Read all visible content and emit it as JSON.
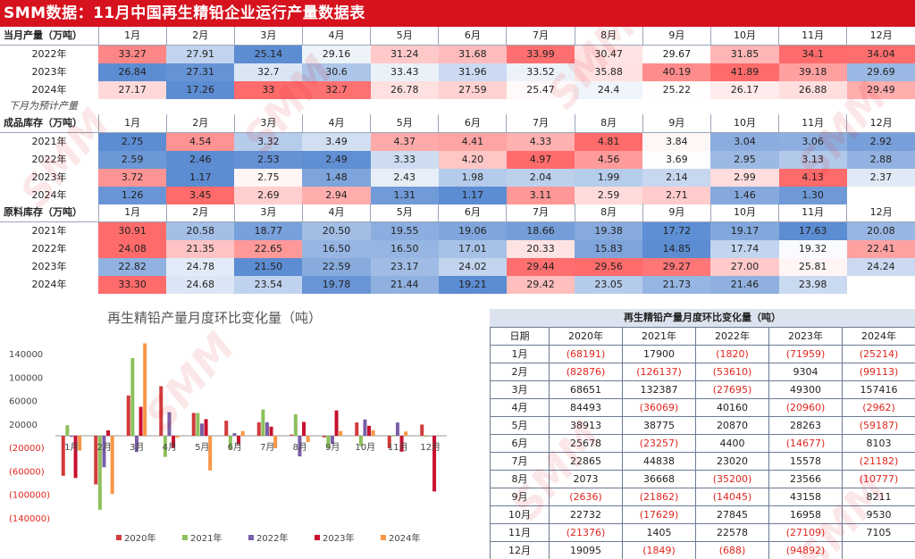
{
  "page_title": "SMM数据：11月中国再生精铅企业运行产量数据表",
  "months": [
    "1月",
    "2月",
    "3月",
    "4月",
    "5月",
    "6月",
    "7月",
    "8月",
    "9月",
    "10月",
    "11月",
    "12月"
  ],
  "note": "下月为预计产量",
  "watermark": "SMM",
  "sections": [
    {
      "title": "当月产量（万吨）",
      "rows": [
        {
          "year": "2022年",
          "values": [
            "33.27",
            "27.91",
            "25.14",
            "29.16",
            "31.24",
            "31.68",
            "33.99",
            "30.47",
            "29.67",
            "31.85",
            "34.1",
            "34.04"
          ]
        },
        {
          "year": "2023年",
          "values": [
            "26.84",
            "27.31",
            "32.7",
            "30.6",
            "33.43",
            "31.96",
            "33.52",
            "35.88",
            "40.19",
            "41.89",
            "39.18",
            "29.69"
          ]
        },
        {
          "year": "2024年",
          "values": [
            "27.17",
            "17.26",
            "33",
            "32.7",
            "26.78",
            "27.59",
            "25.47",
            "24.4",
            "25.22",
            "26.17",
            "26.88",
            "29.49"
          ]
        }
      ]
    },
    {
      "title": "成品库存（万吨）",
      "rows": [
        {
          "year": "2021年",
          "values": [
            "2.75",
            "4.54",
            "3.32",
            "3.49",
            "4.37",
            "4.41",
            "4.33",
            "4.81",
            "3.84",
            "3.04",
            "3.06",
            "2.92"
          ]
        },
        {
          "year": "2022年",
          "values": [
            "2.59",
            "2.46",
            "2.53",
            "2.49",
            "3.33",
            "4.20",
            "4.97",
            "4.56",
            "3.69",
            "2.95",
            "3.13",
            "2.88"
          ]
        },
        {
          "year": "2023年",
          "values": [
            "3.72",
            "1.17",
            "2.75",
            "1.48",
            "2.43",
            "1.98",
            "2.04",
            "1.99",
            "2.14",
            "2.99",
            "4.13",
            "2.37"
          ]
        },
        {
          "year": "2024年",
          "values": [
            "1.26",
            "3.45",
            "2.69",
            "2.94",
            "1.31",
            "1.17",
            "3.11",
            "2.59",
            "2.71",
            "1.46",
            "1.30",
            ""
          ]
        }
      ]
    },
    {
      "title": "原料库存（万吨）",
      "rows": [
        {
          "year": "2021年",
          "values": [
            "30.91",
            "20.58",
            "18.77",
            "20.50",
            "19.55",
            "19.06",
            "18.66",
            "19.38",
            "17.72",
            "19.17",
            "17.63",
            "20.08"
          ]
        },
        {
          "year": "2022年",
          "values": [
            "24.08",
            "21.35",
            "22.65",
            "16.50",
            "16.50",
            "17.01",
            "20.33",
            "15.83",
            "14.85",
            "17.74",
            "19.32",
            "22.41"
          ]
        },
        {
          "year": "2023年",
          "values": [
            "22.82",
            "24.78",
            "21.50",
            "22.59",
            "23.17",
            "24.02",
            "29.44",
            "29.56",
            "29.27",
            "27.00",
            "25.81",
            "24.24"
          ]
        },
        {
          "year": "2024年",
          "values": [
            "33.30",
            "24.68",
            "23.54",
            "19.78",
            "21.44",
            "19.21",
            "29.42",
            "23.05",
            "21.73",
            "21.46",
            "23.98",
            ""
          ]
        }
      ]
    }
  ],
  "mom_table": {
    "title": "再生精铅产量月度环比变化量（吨）",
    "headers": [
      "日期",
      "2020年",
      "2021年",
      "2022年",
      "2023年",
      "2024年"
    ],
    "rows": [
      [
        "1月",
        "(68191)",
        "17900",
        "(1820)",
        "(71959)",
        "(25214)"
      ],
      [
        "2月",
        "(82876)",
        "(126137)",
        "(53610)",
        "9304",
        "(99113)"
      ],
      [
        "3月",
        "68651",
        "132387",
        "(27695)",
        "49300",
        "157416"
      ],
      [
        "4月",
        "84493",
        "(36069)",
        "40160",
        "(20960)",
        "(2962)"
      ],
      [
        "5月",
        "38913",
        "38775",
        "20870",
        "28263",
        "(59187)"
      ],
      [
        "6月",
        "25678",
        "(23257)",
        "4400",
        "(14677)",
        "8103"
      ],
      [
        "7月",
        "22865",
        "44838",
        "23020",
        "15578",
        "(21182)"
      ],
      [
        "8月",
        "2073",
        "36668",
        "(35200)",
        "23566",
        "(10777)"
      ],
      [
        "9月",
        "(2636)",
        "(21862)",
        "(14045)",
        "43158",
        "8211"
      ],
      [
        "10月",
        "22732",
        "(17629)",
        "27845",
        "16958",
        "9530"
      ],
      [
        "11月",
        "(21376)",
        "1405",
        "22578",
        "(27109)",
        "7105"
      ],
      [
        "12月",
        "19095",
        "(1849)",
        "(688)",
        "(94892)",
        ""
      ]
    ]
  },
  "chart_data": {
    "type": "bar",
    "title": "再生精铅产量月度环比变化量（吨）",
    "categories": [
      "1月",
      "2月",
      "3月",
      "4月",
      "5月",
      "6月",
      "7月",
      "8月",
      "9月",
      "10月",
      "11月",
      "12月"
    ],
    "ylim": [
      -140000,
      140000
    ],
    "yticks": [
      "140000",
      "100000",
      "60000",
      "20000",
      "(20000)",
      "(60000)",
      "(100000)",
      "(140000)"
    ],
    "ytick_values": [
      140000,
      100000,
      60000,
      20000,
      -20000,
      -60000,
      -100000,
      -140000
    ],
    "legend_position": "bottom",
    "series": [
      {
        "name": "2020年",
        "color": "#d23a3a",
        "values": [
          -68191,
          -82876,
          68651,
          84493,
          38913,
          25678,
          22865,
          2073,
          -2636,
          22732,
          -21376,
          19095
        ]
      },
      {
        "name": "2021年",
        "color": "#8dc05a",
        "values": [
          17900,
          -126137,
          132387,
          -36069,
          38775,
          -23257,
          44838,
          36668,
          -21862,
          -17629,
          1405,
          -1849
        ]
      },
      {
        "name": "2022年",
        "color": "#7a5ea8",
        "values": [
          -1820,
          -53610,
          -27695,
          40160,
          20870,
          4400,
          23020,
          -35200,
          -14045,
          27845,
          22578,
          -688
        ]
      },
      {
        "name": "2023年",
        "color": "#c8102e",
        "values": [
          -71959,
          9304,
          49300,
          -20960,
          28263,
          -14677,
          15578,
          23566,
          43158,
          16958,
          -27109,
          -94892
        ]
      },
      {
        "name": "2024年",
        "color": "#f79646",
        "values": [
          -25214,
          -99113,
          157416,
          -2962,
          -59187,
          8103,
          -21182,
          -10777,
          8211,
          9530,
          7105,
          null
        ]
      }
    ]
  }
}
